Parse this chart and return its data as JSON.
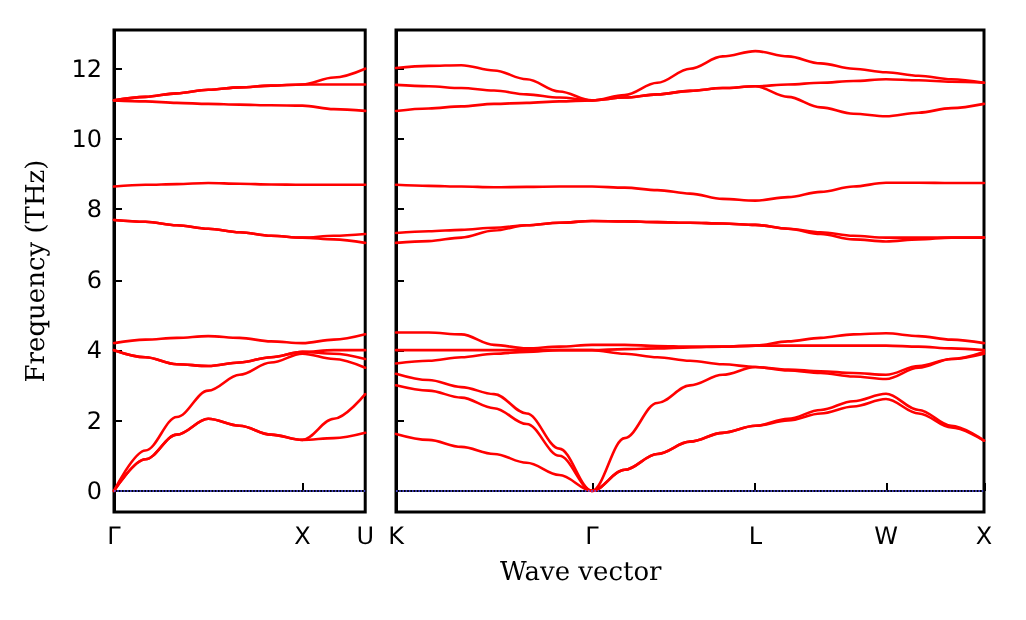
{
  "chart_data": [
    {
      "type": "line",
      "ylabel": "Frequency (THz)",
      "categories": [
        "Γ",
        null,
        null,
        null,
        null,
        null,
        "X",
        null,
        "U"
      ],
      "ylim": [
        -0.6,
        13.1
      ],
      "yticks": [
        0,
        2,
        4,
        6,
        8,
        10,
        12
      ],
      "grid": false,
      "marker": "none",
      "line_style": "solid",
      "ref_lines": [
        {
          "axis": "y",
          "value": 0,
          "color": "#5555ff",
          "line_style": "dotted"
        }
      ],
      "series": [
        {
          "color": "#ff0000",
          "values": [
            0,
            0.9,
            1.6,
            2.05,
            1.85,
            1.6,
            1.45,
            1.5,
            1.65
          ]
        },
        {
          "color": "#ff0000",
          "values": [
            0,
            0.9,
            1.6,
            2.05,
            1.85,
            1.6,
            1.45,
            2.05,
            2.75
          ]
        },
        {
          "color": "#ff0000",
          "values": [
            0,
            1.15,
            2.1,
            2.85,
            3.3,
            3.65,
            3.9,
            3.75,
            3.5
          ]
        },
        {
          "color": "#ff0000",
          "values": [
            4.0,
            3.8,
            3.6,
            3.55,
            3.65,
            3.8,
            3.95,
            3.9,
            3.75
          ]
        },
        {
          "color": "#ff0000",
          "values": [
            4.0,
            3.8,
            3.6,
            3.55,
            3.65,
            3.8,
            3.95,
            4.0,
            4.0
          ]
        },
        {
          "color": "#ff0000",
          "values": [
            4.2,
            4.3,
            4.35,
            4.4,
            4.35,
            4.25,
            4.2,
            4.3,
            4.45
          ]
        },
        {
          "color": "#ff0000",
          "values": [
            7.7,
            7.65,
            7.55,
            7.45,
            7.35,
            7.25,
            7.2,
            7.25,
            7.3
          ]
        },
        {
          "color": "#ff0000",
          "values": [
            7.7,
            7.65,
            7.55,
            7.45,
            7.35,
            7.25,
            7.2,
            7.15,
            7.05
          ]
        },
        {
          "color": "#ff0000",
          "values": [
            8.65,
            8.7,
            8.72,
            8.75,
            8.73,
            8.71,
            8.7,
            8.7,
            8.7
          ]
        },
        {
          "color": "#ff0000",
          "values": [
            11.1,
            11.07,
            11.03,
            11.0,
            10.98,
            10.96,
            10.95,
            10.85,
            10.8
          ]
        },
        {
          "color": "#ff0000",
          "values": [
            11.1,
            11.2,
            11.3,
            11.4,
            11.47,
            11.52,
            11.55,
            11.55,
            11.55
          ]
        },
        {
          "color": "#ff0000",
          "values": [
            11.1,
            11.2,
            11.3,
            11.4,
            11.47,
            11.52,
            11.55,
            11.75,
            12.0
          ]
        }
      ]
    },
    {
      "type": "line",
      "xlabel": "Wave vector",
      "categories": [
        "K",
        null,
        null,
        null,
        null,
        null,
        "Γ",
        null,
        null,
        null,
        null,
        "L",
        null,
        null,
        null,
        "W",
        null,
        null,
        "X"
      ],
      "ylim": [
        -0.6,
        13.1
      ],
      "yticks": [
        0,
        2,
        4,
        6,
        8,
        10,
        12
      ],
      "tick_labels": "x",
      "grid": false,
      "marker": "none",
      "line_style": "solid",
      "ref_lines": [
        {
          "axis": "y",
          "value": 0,
          "color": "#5555ff",
          "line_style": "dotted"
        }
      ],
      "series": [
        {
          "color": "#ff0000",
          "values": [
            1.62,
            1.45,
            1.25,
            1.05,
            0.8,
            0.45,
            0,
            0.6,
            1.05,
            1.4,
            1.65,
            1.85,
            2.05,
            2.3,
            2.55,
            2.76,
            2.3,
            1.85,
            1.43
          ]
        },
        {
          "color": "#ff0000",
          "values": [
            3.0,
            2.85,
            2.65,
            2.35,
            1.9,
            1.0,
            0,
            0.6,
            1.05,
            1.4,
            1.65,
            1.85,
            2.0,
            2.2,
            2.4,
            2.61,
            2.2,
            1.8,
            1.43
          ]
        },
        {
          "color": "#ff0000",
          "values": [
            3.33,
            3.15,
            2.95,
            2.75,
            2.2,
            1.2,
            0,
            1.5,
            2.5,
            3.0,
            3.3,
            3.52,
            3.45,
            3.4,
            3.35,
            3.3,
            3.55,
            3.75,
            3.95
          ]
        },
        {
          "color": "#ff0000",
          "values": [
            3.62,
            3.7,
            3.8,
            3.9,
            3.95,
            4.0,
            4.0,
            3.9,
            3.8,
            3.7,
            3.6,
            3.52,
            3.42,
            3.35,
            3.25,
            3.18,
            3.5,
            3.75,
            3.9
          ]
        },
        {
          "color": "#ff0000",
          "values": [
            4.0,
            4.0,
            4.0,
            4.0,
            4.0,
            4.0,
            4.0,
            4.03,
            4.05,
            4.08,
            4.1,
            4.13,
            4.13,
            4.13,
            4.13,
            4.13,
            4.1,
            4.05,
            4.0
          ]
        },
        {
          "color": "#ff0000",
          "values": [
            4.5,
            4.5,
            4.45,
            4.15,
            4.05,
            4.1,
            4.15,
            4.15,
            4.12,
            4.1,
            4.1,
            4.13,
            4.25,
            4.35,
            4.45,
            4.48,
            4.4,
            4.3,
            4.2
          ]
        },
        {
          "color": "#ff0000",
          "values": [
            7.33,
            7.38,
            7.42,
            7.48,
            7.55,
            7.62,
            7.67,
            7.66,
            7.64,
            7.62,
            7.6,
            7.56,
            7.45,
            7.35,
            7.25,
            7.2,
            7.2,
            7.2,
            7.2
          ]
        },
        {
          "color": "#ff0000",
          "values": [
            7.05,
            7.1,
            7.2,
            7.4,
            7.55,
            7.62,
            7.67,
            7.66,
            7.64,
            7.62,
            7.6,
            7.56,
            7.45,
            7.3,
            7.15,
            7.09,
            7.15,
            7.2,
            7.2
          ]
        },
        {
          "color": "#ff0000",
          "values": [
            8.7,
            8.67,
            8.65,
            8.63,
            8.64,
            8.65,
            8.65,
            8.62,
            8.55,
            8.45,
            8.3,
            8.25,
            8.35,
            8.5,
            8.65,
            8.76,
            8.76,
            8.75,
            8.75
          ]
        },
        {
          "color": "#ff0000",
          "values": [
            10.8,
            10.87,
            10.93,
            11.0,
            11.03,
            11.07,
            11.1,
            11.18,
            11.27,
            11.37,
            11.45,
            11.5,
            11.2,
            10.9,
            10.72,
            10.65,
            10.75,
            10.88,
            11.0
          ]
        },
        {
          "color": "#ff0000",
          "values": [
            11.54,
            11.5,
            11.45,
            11.38,
            11.27,
            11.18,
            11.1,
            11.18,
            11.27,
            11.37,
            11.45,
            11.5,
            11.55,
            11.6,
            11.65,
            11.7,
            11.67,
            11.63,
            11.6
          ]
        },
        {
          "color": "#ff0000",
          "values": [
            12.02,
            12.08,
            12.1,
            11.95,
            11.7,
            11.35,
            11.1,
            11.25,
            11.6,
            12.0,
            12.35,
            12.5,
            12.35,
            12.15,
            12.0,
            11.9,
            11.8,
            11.7,
            11.6
          ]
        }
      ]
    }
  ]
}
